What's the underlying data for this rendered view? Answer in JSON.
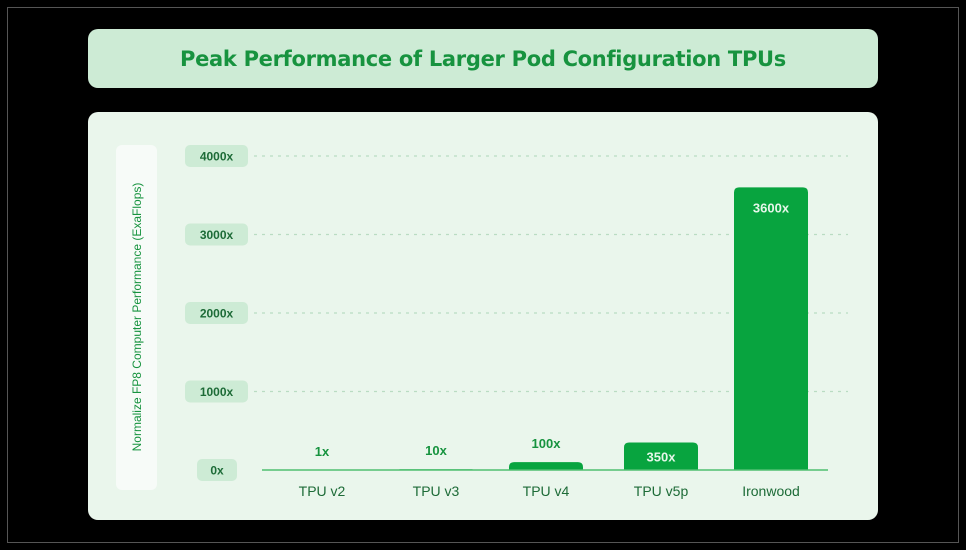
{
  "title": "Peak Performance of Larger Pod Configuration TPUs",
  "chart_data": {
    "type": "bar",
    "title": "Peak Performance of Larger Pod Configuration TPUs",
    "xlabel": "",
    "ylabel": "Normalize FP8 Computer Performance (ExaFlops)",
    "categories": [
      "TPU v2",
      "TPU v3",
      "TPU v4",
      "TPU v5p",
      "Ironwood"
    ],
    "values": [
      1,
      10,
      100,
      350,
      3600
    ],
    "data_labels": [
      "1x",
      "10x",
      "100x",
      "350x",
      "3600x"
    ],
    "yticks": [
      0,
      1000,
      2000,
      3000,
      4000
    ],
    "ytick_labels": [
      "0x",
      "1000x",
      "2000x",
      "3000x",
      "4000x"
    ],
    "ylim": [
      0,
      4000
    ],
    "grid": true,
    "colors": {
      "bar": "#08a43f",
      "label_dark": "#17933f",
      "label_light": "#e6f7ea",
      "tick_pill": "#cdebd5",
      "grid": "#b9dcc2",
      "axis": "#4fbf70"
    }
  }
}
